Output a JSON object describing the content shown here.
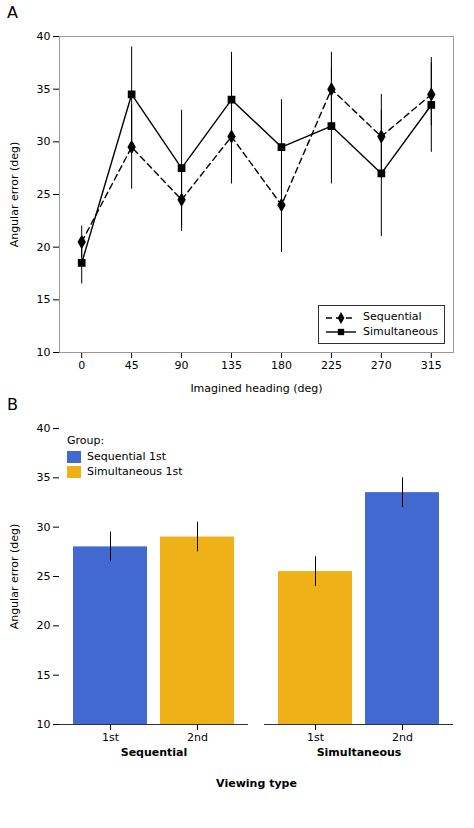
{
  "chart_data": [
    {
      "type": "line",
      "title": "A",
      "xlabel": "Imagined heading (deg)",
      "ylabel": "Angular error (deg)",
      "x": [
        0,
        45,
        90,
        135,
        180,
        225,
        270,
        315
      ],
      "xlim": [
        -20,
        335
      ],
      "xticks": [
        0,
        45,
        90,
        135,
        180,
        225,
        270,
        315
      ],
      "ylim": [
        10,
        40
      ],
      "yticks": [
        10,
        15,
        20,
        25,
        30,
        35,
        40
      ],
      "legend": "lower right",
      "series": [
        {
          "name": "Sequential",
          "color": "black",
          "marker": "diamond",
          "line_style": "dashed",
          "values": [
            20.5,
            29.5,
            24.5,
            30.5,
            24.0,
            35.0,
            30.5,
            34.5
          ],
          "yerr": [
            1.5,
            4.0,
            3.0,
            4.5,
            4.5,
            3.5,
            4.0,
            3.0
          ]
        },
        {
          "name": "Simultaneous",
          "color": "black",
          "marker": "square",
          "line_style": "solid",
          "values": [
            18.5,
            34.5,
            27.5,
            34.0,
            29.5,
            31.5,
            27.0,
            33.5
          ],
          "yerr": [
            2.0,
            4.5,
            5.5,
            4.5,
            4.5,
            5.5,
            6.0,
            4.5
          ]
        }
      ]
    },
    {
      "type": "bar",
      "title": "B",
      "xlabel": "Viewing type",
      "ylabel": "Angular error (deg)",
      "categories": [
        "1st",
        "2nd",
        "1st",
        "2nd"
      ],
      "groups": [
        "Sequential",
        "Sequential",
        "Simultaneous",
        "Simultaneous"
      ],
      "ylim": [
        10,
        40
      ],
      "yticks": [
        10,
        15,
        20,
        25,
        30,
        35,
        40
      ],
      "legend": "upper left",
      "legend_title": "Group:",
      "series": [
        {
          "name": "Sequential 1st",
          "values": [
            28.0,
            null,
            null,
            33.5
          ],
          "yerr": [
            1.5,
            null,
            null,
            1.5
          ]
        },
        {
          "name": "Simultaneous 1st",
          "values": [
            null,
            29.0,
            25.5,
            null
          ],
          "yerr": [
            null,
            1.5,
            1.5,
            null
          ]
        }
      ]
    }
  ]
}
